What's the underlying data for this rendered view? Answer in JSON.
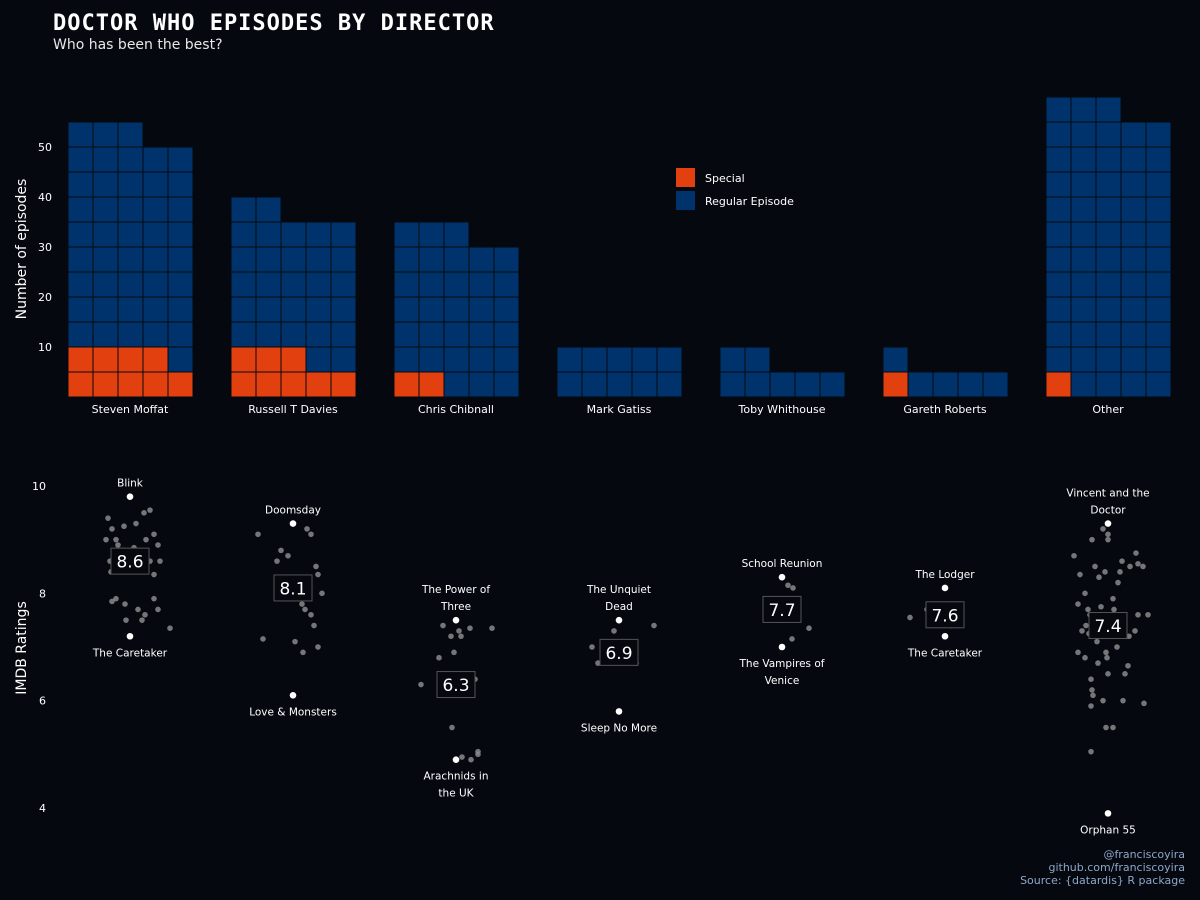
{
  "header": {
    "title": "DOCTOR WHO EPISODES BY DIRECTOR",
    "subtitle": "Who has been the best?"
  },
  "caption": {
    "line1": "@franciscoyira",
    "line2": "github.com/franciscoyira",
    "line3": "Source: {datardis} R package"
  },
  "colors": {
    "background": "#05080f",
    "special": "#e3400f",
    "regular": "#00336b",
    "point": "#8a8a8a",
    "highlight": "#ffffff"
  },
  "chart_data": [
    {
      "type": "bar",
      "subtype": "waffle",
      "ylabel": "Number of episodes",
      "yticks": [
        10,
        20,
        30,
        40,
        50
      ],
      "legend": {
        "position": "top-center",
        "entries": [
          "Special",
          "Regular Episode"
        ]
      },
      "categories": [
        "Steven Moffat",
        "Russell T Davies",
        "Chris Chibnall",
        "Mark Gatiss",
        "Toby Whithouse",
        "Gareth Roberts",
        "Other"
      ],
      "series": [
        {
          "name": "Special",
          "values": [
            9,
            8,
            2,
            0,
            0,
            1,
            1
          ]
        },
        {
          "name": "Regular Episode",
          "values": [
            44,
            29,
            31,
            10,
            7,
            5,
            57
          ]
        }
      ]
    },
    {
      "type": "scatter",
      "subtype": "jitter",
      "ylabel": "IMDB Ratings",
      "ylim": [
        3.5,
        10.4
      ],
      "yticks": [
        4,
        6,
        8,
        10
      ],
      "categories": [
        "Steven Moffat",
        "Russell T Davies",
        "Chris Chibnall",
        "Mark Gatiss",
        "Toby Whithouse",
        "Gareth Roberts",
        "Other"
      ],
      "means": [
        "8.6",
        "8.1",
        "6.3",
        "6.9",
        "7.7",
        "7.6",
        "7.4"
      ],
      "best": [
        {
          "title": [
            "Blink"
          ],
          "rating": 9.8
        },
        {
          "title": [
            "Doomsday"
          ],
          "rating": 9.3
        },
        {
          "title": [
            "The Power of",
            "Three"
          ],
          "rating": 7.5
        },
        {
          "title": [
            "The Unquiet",
            "Dead"
          ],
          "rating": 7.5
        },
        {
          "title": [
            "School Reunion"
          ],
          "rating": 8.3
        },
        {
          "title": [
            "The Lodger"
          ],
          "rating": 8.1
        },
        {
          "title": [
            "Vincent and the",
            "Doctor"
          ],
          "rating": 9.3
        }
      ],
      "worst": [
        {
          "title": [
            "The Caretaker"
          ],
          "rating": 7.2
        },
        {
          "title": [
            "Love & Monsters"
          ],
          "rating": 6.1
        },
        {
          "title": [
            "Arachnids in",
            "the UK"
          ],
          "rating": 4.9
        },
        {
          "title": [
            "Sleep No More"
          ],
          "rating": 5.8
        },
        {
          "title": [
            "The Vampires of",
            "Venice"
          ],
          "rating": 7.0
        },
        {
          "title": [
            "The Caretaker"
          ],
          "rating": 7.2
        },
        {
          "title": [
            "Orphan 55"
          ],
          "rating": 3.9
        }
      ],
      "points": [
        [
          [
            -0.44,
            9.4
          ],
          [
            -0.36,
            9.2
          ],
          [
            -0.28,
            9.0
          ],
          [
            -0.12,
            9.25
          ],
          [
            0.12,
            9.3
          ],
          [
            0.28,
            9.5
          ],
          [
            0.4,
            9.55
          ],
          [
            -0.48,
            9.0
          ],
          [
            -0.24,
            8.9
          ],
          [
            -0.14,
            8.8
          ],
          [
            0.08,
            8.85
          ],
          [
            0.32,
            9.0
          ],
          [
            0.48,
            9.1
          ],
          [
            0.56,
            8.9
          ],
          [
            -0.4,
            8.6
          ],
          [
            -0.3,
            8.5
          ],
          [
            -0.2,
            8.6
          ],
          [
            0.4,
            8.6
          ],
          [
            0.6,
            8.6
          ],
          [
            -0.38,
            8.4
          ],
          [
            -0.26,
            8.4
          ],
          [
            0.48,
            8.35
          ],
          [
            -0.28,
            7.9
          ],
          [
            -0.1,
            7.8
          ],
          [
            0.48,
            7.9
          ],
          [
            0.16,
            7.7
          ],
          [
            0.56,
            7.7
          ],
          [
            -0.08,
            7.5
          ],
          [
            0.24,
            7.5
          ],
          [
            0.8,
            7.35
          ],
          [
            -0.36,
            7.85
          ],
          [
            0.3,
            7.6
          ]
        ],
        [
          [
            -0.7,
            9.1
          ],
          [
            -0.24,
            8.8
          ],
          [
            -0.1,
            8.7
          ],
          [
            0.28,
            9.2
          ],
          [
            0.36,
            9.1
          ],
          [
            0.46,
            8.5
          ],
          [
            0.5,
            8.35
          ],
          [
            0.58,
            8.0
          ],
          [
            -0.32,
            8.6
          ],
          [
            0.12,
            7.9
          ],
          [
            0.18,
            7.8
          ],
          [
            0.36,
            7.6
          ],
          [
            0.42,
            7.4
          ],
          [
            0.24,
            7.7
          ],
          [
            -0.6,
            7.15
          ],
          [
            0.04,
            7.1
          ],
          [
            0.2,
            6.9
          ],
          [
            0.5,
            7.0
          ]
        ],
        [
          [
            -0.7,
            6.3
          ],
          [
            -0.34,
            6.8
          ],
          [
            -0.26,
            7.4
          ],
          [
            -0.1,
            7.2
          ],
          [
            0.06,
            7.3
          ],
          [
            0.28,
            7.35
          ],
          [
            0.72,
            7.35
          ],
          [
            -0.04,
            6.9
          ],
          [
            0.38,
            6.4
          ],
          [
            -0.14,
            6.3
          ],
          [
            -0.08,
            5.5
          ],
          [
            0.12,
            4.95
          ],
          [
            0.3,
            4.9
          ],
          [
            0.44,
            5.0
          ],
          [
            0.44,
            5.05
          ],
          [
            0.1,
            7.2
          ],
          [
            0.26,
            6.4
          ]
        ],
        [
          [
            -0.54,
            7.0
          ],
          [
            -0.42,
            6.7
          ],
          [
            -0.14,
            6.9
          ],
          [
            -0.1,
            7.3
          ],
          [
            0.06,
            7.1
          ],
          [
            0.18,
            6.95
          ],
          [
            0.24,
            6.9
          ],
          [
            0.34,
            6.7
          ],
          [
            0.7,
            7.4
          ],
          [
            -0.28,
            6.95
          ]
        ],
        [
          [
            0.12,
            8.15
          ],
          [
            0.22,
            8.1
          ],
          [
            0.16,
            7.9
          ],
          [
            0.54,
            7.35
          ],
          [
            0.2,
            7.15
          ],
          [
            -0.06,
            7.5
          ]
        ],
        [
          [
            -0.7,
            7.55
          ],
          [
            -0.36,
            7.7
          ],
          [
            -0.16,
            7.5
          ],
          [
            0.12,
            7.4
          ],
          [
            0.28,
            7.65
          ],
          [
            0.2,
            7.5
          ]
        ],
        [
          [
            -0.68,
            8.7
          ],
          [
            -0.56,
            8.35
          ],
          [
            -0.46,
            8.0
          ],
          [
            -0.4,
            7.7
          ],
          [
            -0.44,
            7.4
          ],
          [
            -0.32,
            9.0
          ],
          [
            -0.26,
            8.5
          ],
          [
            -0.1,
            9.2
          ],
          [
            0.0,
            9.1
          ],
          [
            0.0,
            9.0
          ],
          [
            0.24,
            8.4
          ],
          [
            0.28,
            8.6
          ],
          [
            0.44,
            8.5
          ],
          [
            0.56,
            8.75
          ],
          [
            0.6,
            8.55
          ],
          [
            0.6,
            7.6
          ],
          [
            0.54,
            7.3
          ],
          [
            0.16,
            7.35
          ],
          [
            0.42,
            7.2
          ],
          [
            -0.6,
            7.8
          ],
          [
            -0.38,
            7.25
          ],
          [
            -0.36,
            7.6
          ],
          [
            -0.06,
            8.4
          ],
          [
            0.1,
            7.9
          ],
          [
            0.12,
            7.7
          ],
          [
            -0.22,
            7.1
          ],
          [
            -0.04,
            6.9
          ],
          [
            -0.02,
            6.8
          ],
          [
            0.18,
            7.0
          ],
          [
            0.4,
            6.65
          ],
          [
            0.34,
            6.5
          ],
          [
            -0.32,
            6.2
          ],
          [
            -0.3,
            6.1
          ],
          [
            -0.34,
            5.9
          ],
          [
            -0.1,
            6.0
          ],
          [
            -0.6,
            6.9
          ],
          [
            -0.46,
            6.8
          ],
          [
            -0.2,
            6.7
          ],
          [
            0.0,
            6.5
          ],
          [
            -0.34,
            6.4
          ],
          [
            0.3,
            6.0
          ],
          [
            0.72,
            5.95
          ],
          [
            -0.04,
            5.5
          ],
          [
            0.1,
            5.5
          ],
          [
            -0.34,
            5.05
          ],
          [
            0.8,
            7.6
          ],
          [
            0.7,
            8.5
          ],
          [
            -0.18,
            8.3
          ],
          [
            0.2,
            8.2
          ],
          [
            -0.52,
            7.3
          ],
          [
            0.06,
            7.55
          ],
          [
            -0.14,
            7.75
          ]
        ]
      ]
    }
  ]
}
